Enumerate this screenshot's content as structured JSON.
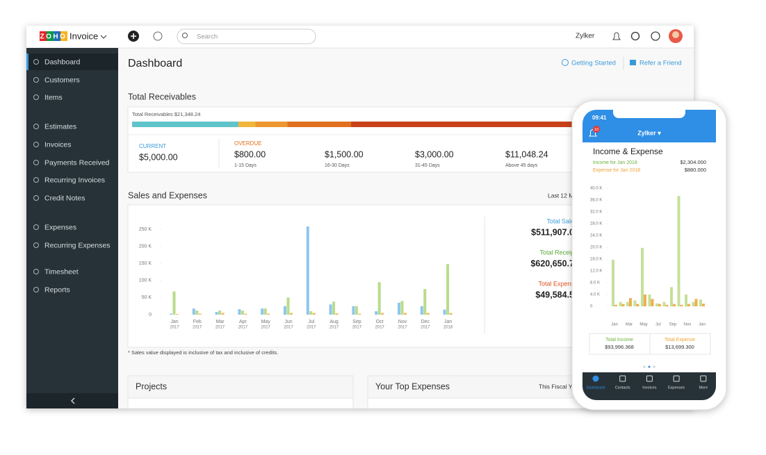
{
  "app": {
    "logo": "ZOHO",
    "product": "Invoice",
    "org": "Zylker",
    "search": "Search"
  },
  "sidebar": {
    "items": [
      "Dashboard",
      "Customers",
      "Items",
      "Estimates",
      "Invoices",
      "Payments Received",
      "Recurring Invoices",
      "Credit Notes",
      "Expenses",
      "Recurring Expenses",
      "Timesheet",
      "Reports"
    ]
  },
  "page": {
    "title": "Dashboard",
    "links": [
      "Getting Started",
      "Refer a Friend"
    ]
  },
  "receivables": {
    "title": "Total Receivables",
    "total_label": "Total Receivables $21,348.24",
    "current_heading": "CURRENT",
    "overdue_heading": "OVERDUE",
    "buckets": [
      {
        "amount": 5000,
        "amount_label": "$5,000.00",
        "color": "#5fc4c9"
      },
      {
        "amount": 800,
        "amount_label": "$800.00",
        "range": "1-15 Days",
        "color": "#f0b53b"
      },
      {
        "amount": 1500,
        "amount_label": "$1,500.00",
        "range": "16-30 Days",
        "color": "#ec9730"
      },
      {
        "amount": 3000,
        "amount_label": "$3,000.00",
        "range": "31-45 Days",
        "color": "#e0701f"
      },
      {
        "amount": 11048.24,
        "amount_label": "$11,048.24",
        "range": "Above 45 days",
        "color": "#c8411b"
      }
    ]
  },
  "sales_chart": {
    "type": "bar",
    "title": "Sales and Expenses",
    "period": "Last 12 M",
    "categories": [
      "Jan",
      "Feb",
      "Mar",
      "Apr",
      "May",
      "Jun",
      "Jul",
      "Aug",
      "Sep",
      "Oct",
      "Nov",
      "Dec",
      "Jan"
    ],
    "category_years": [
      "2017",
      "2017",
      "2017",
      "2017",
      "2017",
      "2017",
      "2017",
      "2017",
      "2017",
      "2017",
      "2017",
      "2017",
      "2018"
    ],
    "ylim": [
      0,
      250
    ],
    "yticks": [
      0,
      {
        "value": 50,
        "label": "50 K"
      },
      {
        "value": 100,
        "label": "100 K"
      },
      {
        "value": 150,
        "label": "150 K"
      },
      {
        "value": 200,
        "label": "200 K"
      },
      {
        "value": 250,
        "label": "250 K"
      }
    ],
    "series": [
      {
        "color": "#8ec6ee",
        "values": [
          3,
          18,
          8,
          16,
          18,
          25,
          258,
          30,
          25,
          10,
          35,
          25,
          15
        ]
      },
      {
        "color": "#b8dc8a",
        "values": [
          68,
          12,
          12,
          12,
          18,
          50,
          10,
          38,
          25,
          95,
          40,
          75,
          148
        ]
      },
      {
        "color": "#f4b860",
        "values": [
          2,
          3,
          5,
          3,
          3,
          5,
          5,
          4,
          3,
          5,
          5,
          5,
          5
        ]
      }
    ],
    "summary": [
      {
        "label": "Total Sale",
        "value": "$511,907.0",
        "color": "#3a9ad9"
      },
      {
        "label": "Total Receip",
        "value": "$620,650.7",
        "color": "#5aa832"
      },
      {
        "label": "Total Expens",
        "value": "$49,584.5",
        "color": "#e0501f"
      }
    ],
    "note": "* Sales value displayed is inclusive of tax and inclusive of credits."
  },
  "projects": {
    "title": "Projects"
  },
  "top_expenses": {
    "title": "Your Top Expenses",
    "period": "This Fiscal Ye"
  },
  "phone": {
    "time": "09:41",
    "org": "Zylker ▾",
    "badge": 10,
    "chart": {
      "type": "bar",
      "title": "Income & Expense",
      "legend": [
        {
          "label": "Income for Jan 2018",
          "value": "$2,304.000"
        },
        {
          "label": "Expense for Jan 2018",
          "value": "$880.000"
        }
      ],
      "categories": [
        "Jan",
        null,
        "Mar",
        null,
        "May",
        null,
        "Jul",
        null,
        "Sep",
        null,
        "Nov",
        null,
        "Jan"
      ],
      "ylim": [
        0,
        40
      ],
      "yticks": [
        0,
        {
          "value": 4,
          "label": "4.0 K"
        },
        {
          "value": 8,
          "label": "8.0 K"
        },
        {
          "value": 12,
          "label": "12.0 K"
        },
        {
          "value": 16,
          "label": "16.0 K"
        },
        {
          "value": 20,
          "label": "20.0 K"
        },
        {
          "value": 24,
          "label": "24.0 K"
        },
        {
          "value": 28,
          "label": "28.0 K"
        },
        {
          "value": 32,
          "label": "32.0 K"
        },
        {
          "value": 36,
          "label": "36.0 K"
        },
        {
          "value": 40,
          "label": "40.0 K"
        }
      ],
      "series": [
        {
          "color": "#c5e09a",
          "values": [
            15.8,
            1.5,
            1.5,
            2,
            19.8,
            4,
            1,
            1.5,
            6.5,
            37.4,
            4,
            1.5,
            2.304
          ]
        },
        {
          "color": "#f0b050",
          "values": [
            0.5,
            0.8,
            2.8,
            0.8,
            4,
            2.5,
            0.8,
            0.5,
            0.8,
            0.5,
            0.8,
            2.5,
            0.88
          ]
        }
      ]
    },
    "totals": [
      {
        "label": "Total Income",
        "value": "$93,996.368"
      },
      {
        "label": "Total Expense",
        "value": "$13,699.300"
      }
    ],
    "nav": [
      "Dashboard",
      "Contacts",
      "Invoices",
      "Expenses",
      "More"
    ]
  }
}
